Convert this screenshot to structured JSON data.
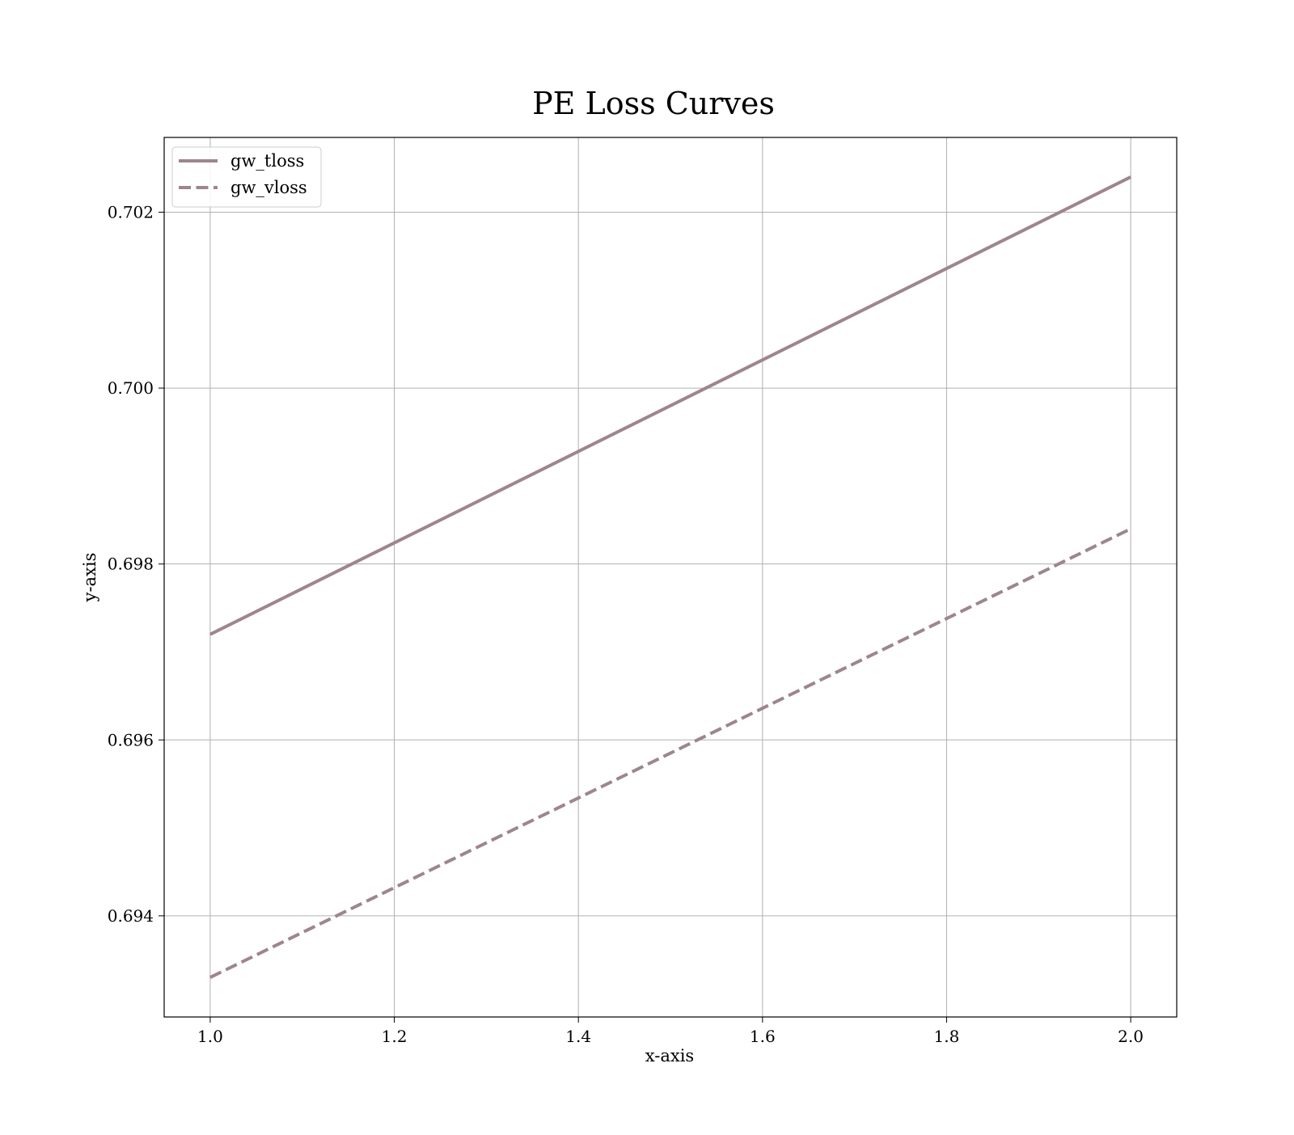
{
  "chart_data": {
    "type": "line",
    "title": "PE Loss Curves",
    "xlabel": "x-axis",
    "ylabel": "y-axis",
    "x": [
      1.0,
      2.0
    ],
    "series": [
      {
        "name": "gw_tloss",
        "values": [
          0.6972,
          0.7024
        ],
        "color": "#9e858e",
        "linestyle": "solid"
      },
      {
        "name": "gw_vloss",
        "values": [
          0.6933,
          0.6984
        ],
        "color": "#9e858e",
        "linestyle": "dashed"
      }
    ],
    "xlim": [
      0.95,
      2.05
    ],
    "ylim": [
      0.69285,
      0.70285
    ],
    "xticks": [
      1.0,
      1.2,
      1.4,
      1.6,
      1.8,
      2.0
    ],
    "xtick_labels": [
      "1.0",
      "1.2",
      "1.4",
      "1.6",
      "1.8",
      "2.0"
    ],
    "yticks": [
      0.694,
      0.696,
      0.698,
      0.7,
      0.702
    ],
    "ytick_labels": [
      "0.694",
      "0.696",
      "0.698",
      "0.700",
      "0.702"
    ],
    "grid": true,
    "legend_position": "upper-left"
  }
}
